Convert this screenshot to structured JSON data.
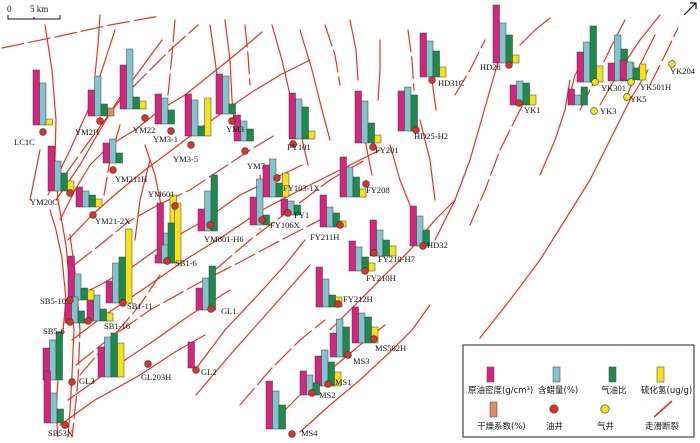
{
  "scale_bar": {
    "zero": "0",
    "label": "5 km"
  },
  "north_arrow": {
    "name": "north-arrow-icon"
  },
  "colors": {
    "fault": "#e8321f",
    "oil_well_fill": "#d9332b",
    "gas_well_fill": "#f5e11c",
    "bar_density": "#d6247f",
    "bar_wax": "#82c3cc",
    "bar_gor": "#1e8a4c",
    "bar_h2s": "#f5e11c",
    "bar_dry": "#e6895d"
  },
  "legend": {
    "items": [
      {
        "label": "原油密度(g/cm³)",
        "icon": "bar-density-icon"
      },
      {
        "label": "含蜡量(%)",
        "icon": "bar-wax-icon"
      },
      {
        "label": "气油比",
        "icon": "bar-gor-icon"
      },
      {
        "label": "硫化氢(ug/g)",
        "icon": "bar-h2s-icon"
      },
      {
        "label": "干燥系数(%)",
        "icon": "bar-dry-icon"
      },
      {
        "label": "油井",
        "icon": "oil-well-icon"
      },
      {
        "label": "气井",
        "icon": "gas-well-icon"
      },
      {
        "label": "走滑断裂",
        "icon": "strike-slip-fault-icon"
      }
    ]
  },
  "wells": [
    {
      "name": "LC1C",
      "type": "oil"
    },
    {
      "name": "YM2H",
      "type": "oil"
    },
    {
      "name": "YM22",
      "type": "oil"
    },
    {
      "name": "YM3",
      "type": "oil"
    },
    {
      "name": "YM3-1",
      "type": "oil"
    },
    {
      "name": "YM3-5",
      "type": "oil"
    },
    {
      "name": "YM7",
      "type": "oil"
    },
    {
      "name": "YM211H",
      "type": "oil"
    },
    {
      "name": "YM20C",
      "type": "oil"
    },
    {
      "name": "YM21-2X",
      "type": "oil"
    },
    {
      "name": "YM601",
      "type": "oil"
    },
    {
      "name": "YM801-H6",
      "type": "oil"
    },
    {
      "name": "FY101",
      "type": "oil"
    },
    {
      "name": "FY201",
      "type": "oil"
    },
    {
      "name": "FY103-1X",
      "type": "oil"
    },
    {
      "name": "FY208",
      "type": "oil"
    },
    {
      "name": "FY1",
      "type": "oil"
    },
    {
      "name": "FY106X",
      "type": "oil"
    },
    {
      "name": "FY211H",
      "type": "oil"
    },
    {
      "name": "FY210-H7",
      "type": "oil"
    },
    {
      "name": "FY210H",
      "type": "oil"
    },
    {
      "name": "FY212H",
      "type": "oil"
    },
    {
      "name": "HD28",
      "type": "oil"
    },
    {
      "name": "HD31C",
      "type": "oil"
    },
    {
      "name": "HD25-H2",
      "type": "oil"
    },
    {
      "name": "HD32",
      "type": "oil"
    },
    {
      "name": "YK1",
      "type": "oil"
    },
    {
      "name": "YK301",
      "type": "gas"
    },
    {
      "name": "YK3",
      "type": "gas"
    },
    {
      "name": "YK5",
      "type": "gas"
    },
    {
      "name": "YK501H",
      "type": "gas"
    },
    {
      "name": "YK204",
      "type": "gas"
    },
    {
      "name": "SB1-6",
      "type": "oil"
    },
    {
      "name": "SB1-11",
      "type": "oil"
    },
    {
      "name": "SB1-16",
      "type": "oil"
    },
    {
      "name": "SB5-10",
      "type": "oil"
    },
    {
      "name": "SB5-6",
      "type": "oil"
    },
    {
      "name": "GL1",
      "type": "oil"
    },
    {
      "name": "GL2",
      "type": "oil"
    },
    {
      "name": "GL3",
      "type": "oil"
    },
    {
      "name": "GL203H",
      "type": "oil"
    },
    {
      "name": "SB53X",
      "type": "oil"
    },
    {
      "name": "MS502H",
      "type": "oil"
    },
    {
      "name": "MS3",
      "type": "oil"
    },
    {
      "name": "MS1",
      "type": "oil"
    },
    {
      "name": "MS2",
      "type": "oil"
    },
    {
      "name": "MS4",
      "type": "oil"
    }
  ]
}
